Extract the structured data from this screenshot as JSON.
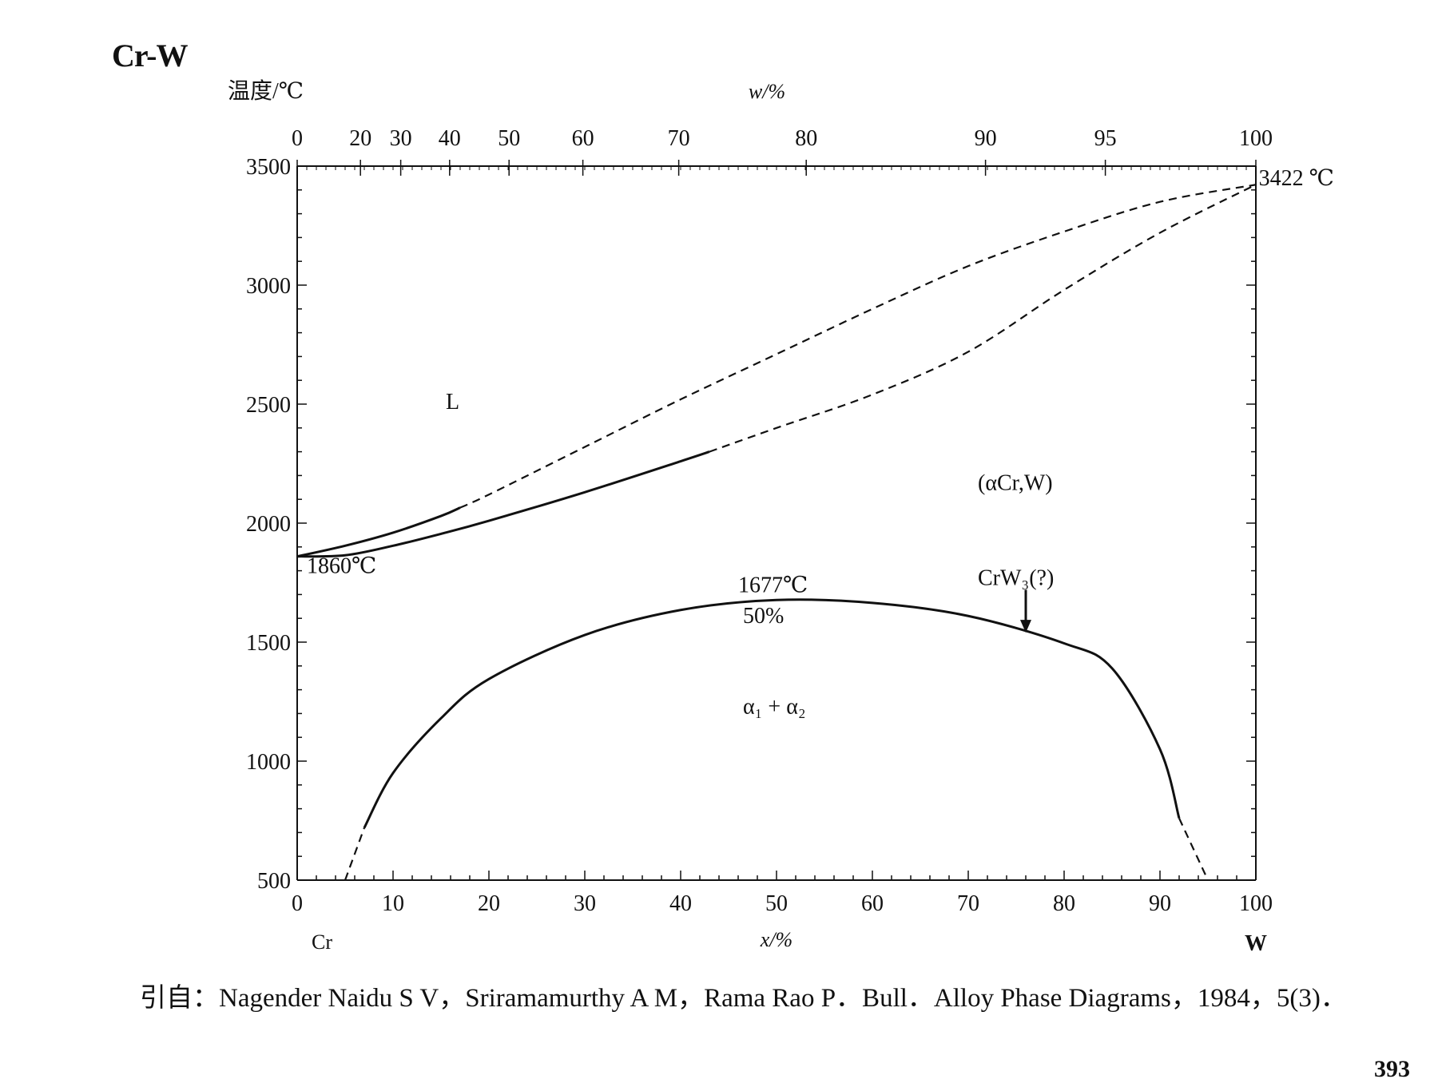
{
  "page": {
    "title": "Cr-W",
    "citation": "引自：Nagender Naidu S V，Sriramamurthy A M，Rama Rao P．Bull．Alloy Phase Diagrams，1984，5(3)．",
    "page_number": "393"
  },
  "chart_data": {
    "type": "line",
    "title": "Cr-W",
    "ylabel": "温度/℃",
    "xlabel": "x/%",
    "top_xlabel": "w/%",
    "x_left_element": "Cr",
    "x_right_element": "W",
    "xlim": [
      0,
      100
    ],
    "ylim": [
      500,
      3500
    ],
    "x_ticks": [
      "0",
      "10",
      "20",
      "30",
      "40",
      "50",
      "60",
      "70",
      "80",
      "90",
      "100"
    ],
    "y_ticks": [
      "500",
      "1000",
      "1500",
      "2000",
      "2500",
      "3000",
      "3500"
    ],
    "top_x_ticks": [
      {
        "label": "0",
        "x_atpct": 0
      },
      {
        "label": "20",
        "x_atpct": 6.6
      },
      {
        "label": "30",
        "x_atpct": 10.8
      },
      {
        "label": "40",
        "x_atpct": 15.9
      },
      {
        "label": "50",
        "x_atpct": 22.1
      },
      {
        "label": "60",
        "x_atpct": 29.8
      },
      {
        "label": "70",
        "x_atpct": 39.8
      },
      {
        "label": "80",
        "x_atpct": 53.1
      },
      {
        "label": "90",
        "x_atpct": 71.8
      },
      {
        "label": "95",
        "x_atpct": 84.3
      },
      {
        "label": "100",
        "x_atpct": 100
      }
    ],
    "series": [
      {
        "name": "liquidus",
        "style": "solid-then-dashed",
        "solid_until_x": 17,
        "points": [
          [
            0,
            1860
          ],
          [
            5,
            1905
          ],
          [
            10,
            1960
          ],
          [
            15,
            2030
          ],
          [
            17,
            2065
          ],
          [
            20,
            2120
          ],
          [
            30,
            2320
          ],
          [
            40,
            2520
          ],
          [
            50,
            2710
          ],
          [
            60,
            2900
          ],
          [
            70,
            3080
          ],
          [
            80,
            3225
          ],
          [
            90,
            3350
          ],
          [
            100,
            3422
          ]
        ]
      },
      {
        "name": "solidus",
        "style": "solid-then-dashed",
        "solid_until_x": 43,
        "points": [
          [
            0,
            1860
          ],
          [
            5,
            1865
          ],
          [
            10,
            1905
          ],
          [
            15,
            1955
          ],
          [
            20,
            2010
          ],
          [
            30,
            2130
          ],
          [
            40,
            2260
          ],
          [
            43,
            2300
          ],
          [
            50,
            2400
          ],
          [
            60,
            2540
          ],
          [
            70,
            2720
          ],
          [
            80,
            2980
          ],
          [
            90,
            3220
          ],
          [
            100,
            3422
          ]
        ]
      },
      {
        "name": "miscibility gap",
        "style": "solid-with-dashed-ends",
        "solid_from_x": 7,
        "solid_to_x": 92,
        "points": [
          [
            5,
            500
          ],
          [
            7,
            720
          ],
          [
            10,
            950
          ],
          [
            15,
            1180
          ],
          [
            20,
            1345
          ],
          [
            30,
            1530
          ],
          [
            40,
            1635
          ],
          [
            50,
            1677
          ],
          [
            60,
            1665
          ],
          [
            70,
            1610
          ],
          [
            80,
            1495
          ],
          [
            85,
            1390
          ],
          [
            90,
            1050
          ],
          [
            92,
            760
          ],
          [
            95,
            500
          ]
        ]
      }
    ],
    "annotations": [
      {
        "text": "1860℃",
        "x": 1,
        "y": 1790
      },
      {
        "text": "3422 ℃",
        "x": 100.3,
        "y": 3420
      },
      {
        "text": "L",
        "x": 15.5,
        "y": 2480
      },
      {
        "text": "(αCr,W)",
        "x": 71,
        "y": 2140
      },
      {
        "text": "1677℃",
        "x": 46,
        "y": 1710
      },
      {
        "text": "50%",
        "x": 46.5,
        "y": 1580
      },
      {
        "text": "α₁ + α₂",
        "x": 46.5,
        "y": 1200
      },
      {
        "text": "CrW₃(?)",
        "x": 71,
        "y": 1740
      }
    ],
    "arrow": {
      "label": "CrW₃(?)",
      "x": 76,
      "y_from": 1720,
      "y_to": 1540
    },
    "grid": false,
    "legend": "none"
  }
}
